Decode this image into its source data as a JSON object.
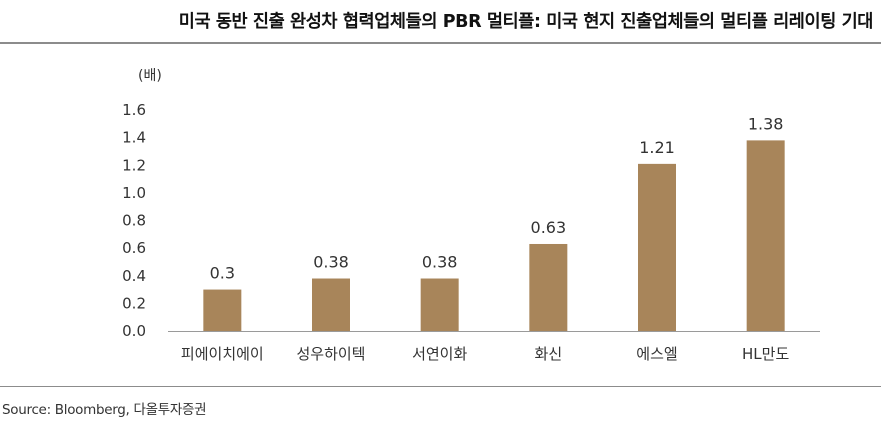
{
  "header": {
    "title": "미국 동반 진출 완성차 협력업체들의 PBR 멀티플: 미국 현지 진출업체들의 멀티플 리레이팅 기대"
  },
  "footer": {
    "source": "Source: Bloomberg, 다올투자증권"
  },
  "chart_data": {
    "type": "bar",
    "title": "미국 동반 진출 완성차 협력업체들의 PBR 멀티플: 미국 현지 진출업체들의 멀티플 리레이팅 기대",
    "ylabel": "(배)",
    "xlabel": "",
    "categories": [
      "피에이치에이",
      "성우하이텍",
      "서연이화",
      "화신",
      "에스엘",
      "HL만도"
    ],
    "values": [
      0.3,
      0.38,
      0.38,
      0.63,
      1.21,
      1.38
    ],
    "data_labels": [
      "0.3",
      "0.38",
      "0.38",
      "0.63",
      "1.21",
      "1.38"
    ],
    "ylim": [
      0,
      1.6
    ],
    "yticks": [
      "0.0",
      "0.2",
      "0.4",
      "0.6",
      "0.8",
      "1.0",
      "1.2",
      "1.4",
      "1.6"
    ],
    "grid": false,
    "legend": "none",
    "bar_color": "#a8855a"
  }
}
